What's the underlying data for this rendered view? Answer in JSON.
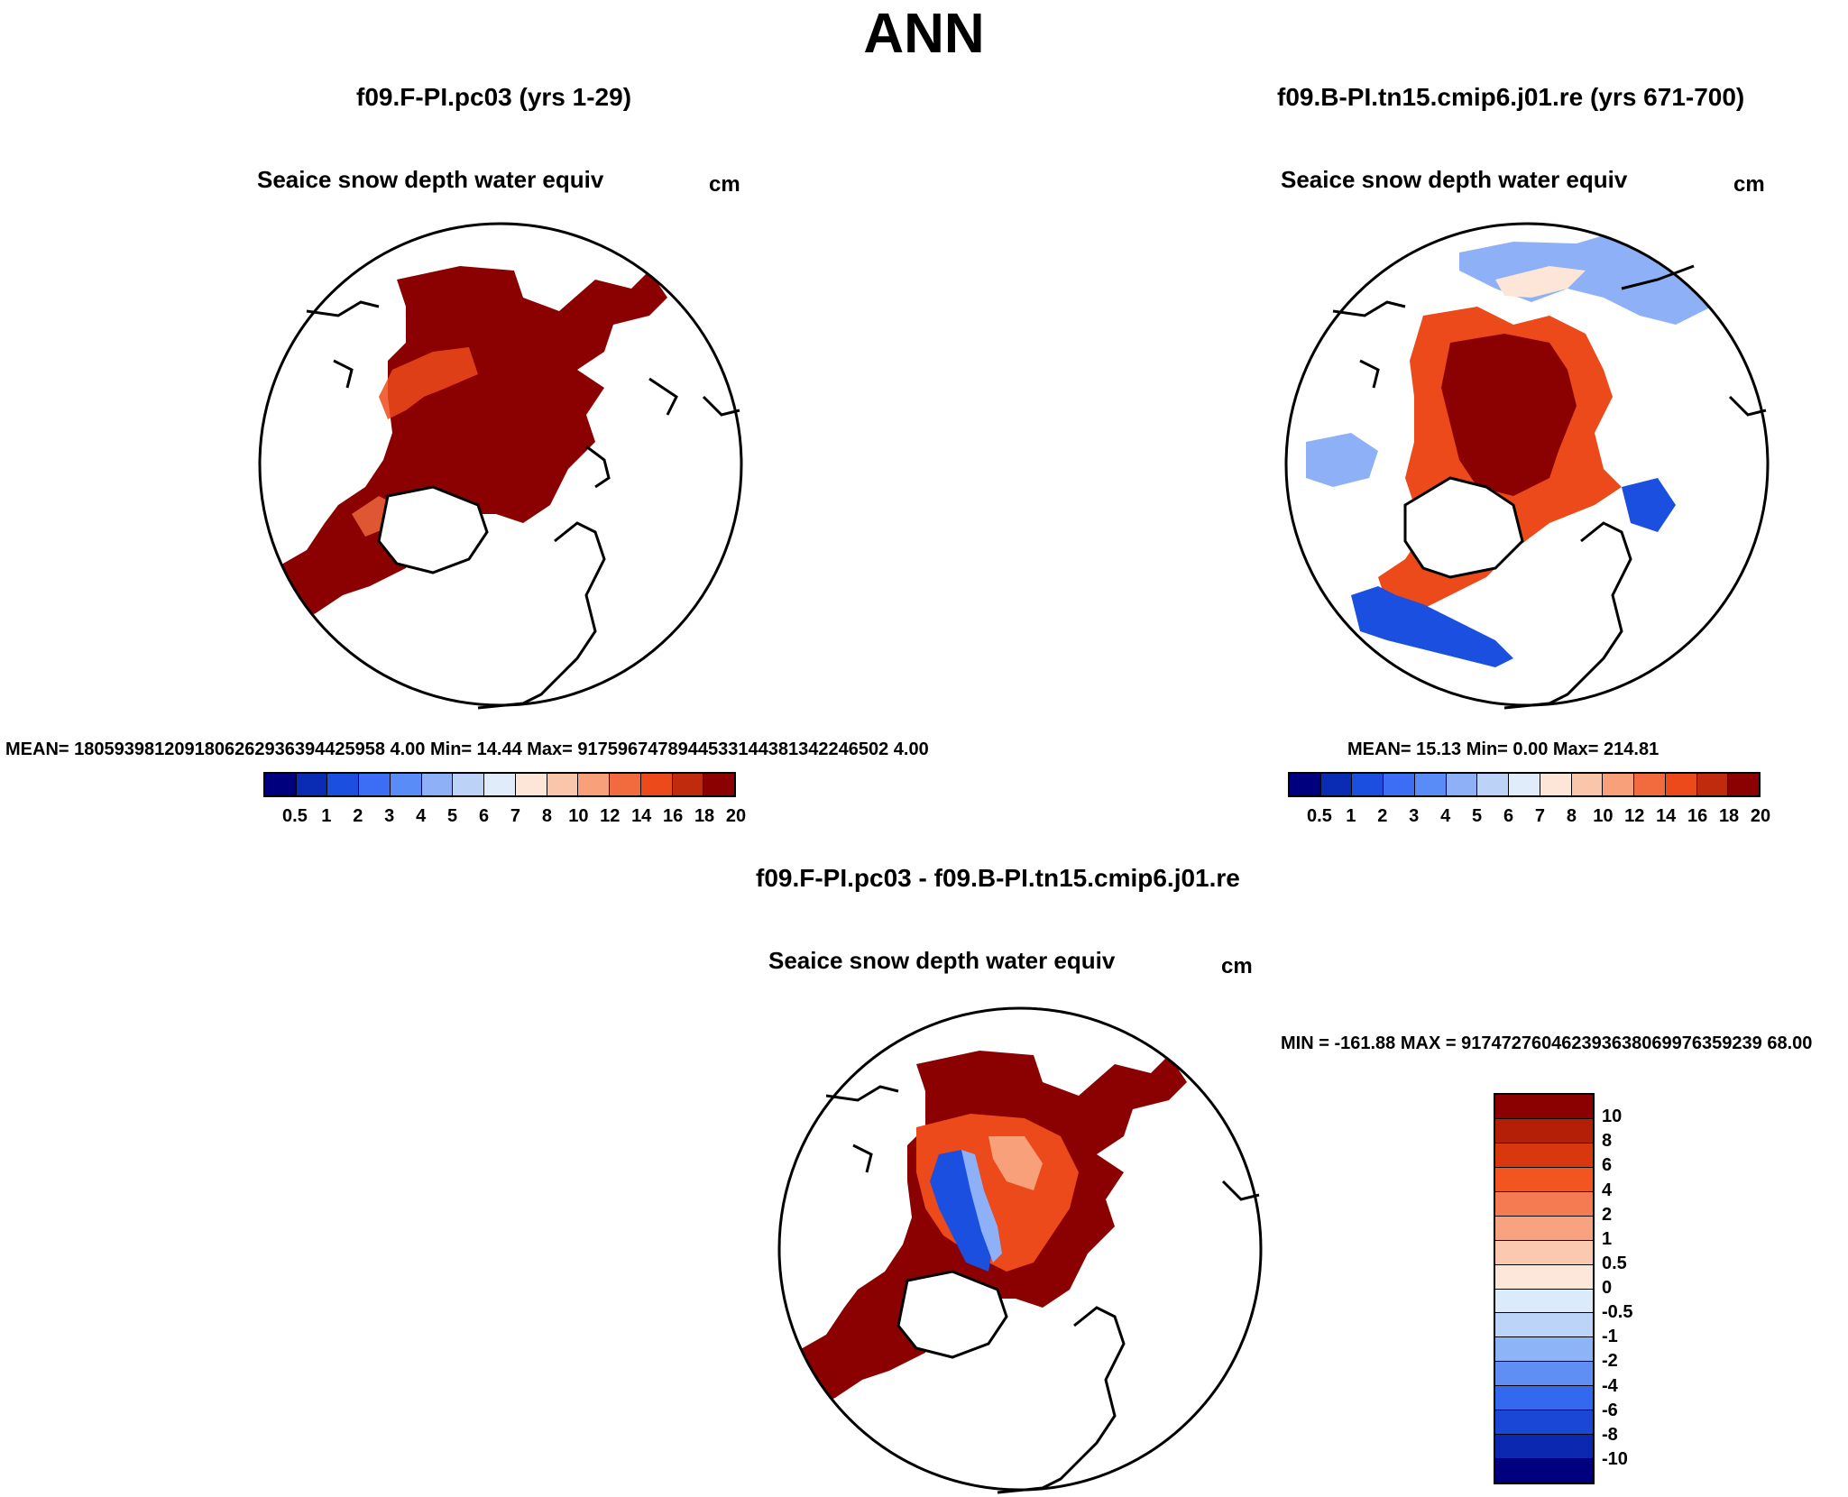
{
  "main_title": "ANN",
  "panels": [
    {
      "title": "f09.F-PI.pc03 (yrs 1-29)",
      "var_title": "Seaice snow depth water equiv",
      "units": "cm",
      "stats": "MEAN= 1805939812091806262936394425958 4.00  Min=  14.44  Max= 9175967478944533144381342246502 4.00"
    },
    {
      "title": "f09.B-PI.tn15.cmip6.j01.re (yrs 671-700)",
      "var_title": "Seaice snow depth water equiv",
      "units": "cm",
      "stats": "MEAN=  15.13  Min=   0.00  Max= 214.81"
    }
  ],
  "diff_panel": {
    "title": "f09.F-PI.pc03 - f09.B-PI.tn15.cmip6.j01.re",
    "var_title": "Seaice snow depth water equiv",
    "units": "cm",
    "stats": "MIN = -161.88 MAX = 917472760462393638069976359239 68.00"
  },
  "colorbar_levels": [
    "0.5",
    "1",
    "2",
    "3",
    "4",
    "5",
    "6",
    "7",
    "8",
    "10",
    "12",
    "14",
    "16",
    "18",
    "20"
  ],
  "colorbar_colors": [
    "#00007f",
    "#0a2cb5",
    "#1b4fe0",
    "#3b6ef5",
    "#5a8cf7",
    "#8db0f7",
    "#bcd2f7",
    "#e0ecf9",
    "#fde6d8",
    "#f9c5ab",
    "#f7a07a",
    "#f26b3e",
    "#ec4a1a",
    "#c12b0d",
    "#8b0000"
  ],
  "diff_levels": [
    "10",
    "8",
    "6",
    "4",
    "2",
    "1",
    "0.5",
    "0",
    "-0.5",
    "-1",
    "-2",
    "-4",
    "-6",
    "-8",
    "-10"
  ],
  "diff_colors": [
    "#8b0000",
    "#b41f08",
    "#d9380f",
    "#f25520",
    "#f47b52",
    "#f8a27f",
    "#fbc9b0",
    "#fde7da",
    "#dcebfa",
    "#bcd4f8",
    "#8db4f7",
    "#5f8ff4",
    "#3369ee",
    "#1a47d6",
    "#0a28b0",
    "#00007f"
  ]
}
